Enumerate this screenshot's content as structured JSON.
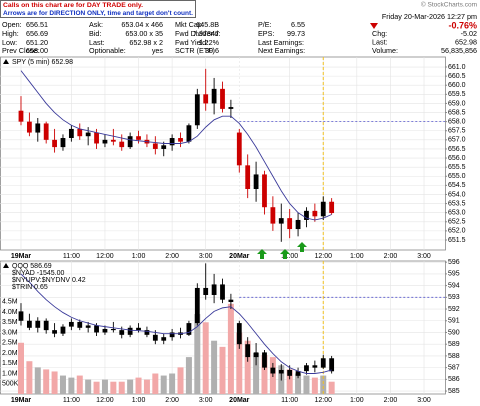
{
  "note": {
    "line1": "Calls on this chart are for DAY TRADE only.",
    "line2": "Arrows are for DIRECTION ONLY, time and target don't count."
  },
  "quote": {
    "credit": "© StockCharts.com",
    "date": "Friday 20-Mar-2026 12:27 pm",
    "change_pct": "-0.76%",
    "rows": [
      [
        {
          "label": "Open:",
          "value": "656.51"
        },
        {
          "label": "Ask:",
          "value": "653.04 x 466"
        },
        {
          "label": "Mkt Cap:",
          "value": "645.8B"
        },
        {
          "label": "P/E:",
          "value": "6.55"
        }
      ],
      [
        {
          "label": "High:",
          "value": "656.69"
        },
        {
          "label": "Bid:",
          "value": "653.00 x 35"
        },
        {
          "label": "Fwd Dividend:",
          "value": "7.97347"
        },
        {
          "label": "EPS:",
          "value": "99.73"
        }
      ],
      [
        {
          "label": "Low:",
          "value": "651.20"
        },
        {
          "label": "Last:",
          "value": "652.98 x 2"
        },
        {
          "label": "Fwd Yield:",
          "value": "1.22%"
        },
        {
          "label": "Last Earnings:"
        }
      ],
      [
        {
          "label": "Prev Close:",
          "value": "658.00"
        },
        {
          "label": "Optionable:",
          "value": "yes"
        },
        {
          "label": "SCTR (ETF)",
          "value": "30.6"
        },
        {
          "label": "Next Earnings:"
        }
      ]
    ],
    "side": [
      {
        "label": "Chg:",
        "value": "-5.02"
      },
      {
        "label": "Last:",
        "value": "652.98"
      },
      {
        "label": "Volume:",
        "value": "56,835,856"
      }
    ]
  },
  "chart_data": [
    {
      "type": "candlestick",
      "legend": [
        "SPY (5 min) 652.98"
      ],
      "up_color": "#000000",
      "down_color": "#cc0000",
      "open": [
        658.6,
        658.0,
        657.4,
        657.9,
        657.0,
        656.6,
        657.1,
        657.6,
        657.2,
        657.4,
        656.8,
        657.0,
        656.9,
        656.6,
        657.2,
        657.0,
        656.8,
        656.5,
        656.7,
        657.1,
        656.9,
        657.8,
        659.5,
        659.0,
        659.8,
        658.7,
        657.4,
        655.6,
        654.3,
        655.1,
        653.3,
        652.4,
        652.7,
        652.1,
        652.6,
        653.1,
        652.8,
        653.6
      ],
      "high": [
        659.4,
        658.5,
        658.2,
        658.0,
        657.6,
        657.3,
        657.8,
        657.9,
        657.7,
        657.6,
        657.3,
        657.6,
        657.3,
        657.4,
        657.5,
        657.3,
        657.2,
        656.9,
        657.3,
        657.4,
        657.9,
        659.8,
        660.9,
        660.4,
        660.2,
        659.2,
        657.6,
        656.2,
        655.8,
        655.3,
        653.9,
        653.5,
        653.2,
        653.0,
        653.3,
        653.5,
        653.9,
        653.8
      ],
      "low": [
        657.8,
        657.2,
        656.9,
        656.8,
        656.3,
        656.4,
        656.9,
        657.0,
        656.7,
        656.5,
        656.6,
        656.7,
        656.4,
        656.5,
        656.8,
        656.6,
        656.2,
        656.1,
        656.4,
        656.6,
        656.8,
        657.6,
        658.6,
        658.4,
        658.5,
        658.2,
        655.2,
        653.8,
        653.6,
        652.9,
        652.0,
        651.4,
        651.6,
        651.7,
        652.2,
        652.5,
        652.6,
        652.9
      ],
      "close": [
        658.0,
        657.4,
        657.9,
        657.0,
        656.6,
        657.1,
        657.6,
        657.2,
        657.4,
        656.8,
        657.0,
        656.9,
        656.6,
        657.2,
        657.0,
        656.8,
        656.5,
        656.7,
        657.1,
        656.9,
        657.8,
        659.5,
        659.0,
        659.8,
        658.7,
        658.8,
        655.6,
        654.3,
        655.1,
        653.3,
        652.4,
        652.7,
        652.1,
        652.6,
        653.1,
        652.8,
        653.6,
        652.98
      ],
      "overlay_color": "#3a3a9a",
      "overlay_values": [
        660.8,
        660.2,
        659.6,
        659.0,
        658.5,
        658.1,
        657.8,
        657.6,
        657.5,
        657.4,
        657.3,
        657.2,
        657.1,
        657.0,
        656.95,
        656.9,
        656.85,
        656.8,
        656.8,
        656.8,
        656.9,
        657.2,
        657.7,
        658.1,
        658.3,
        658.3,
        657.9,
        657.3,
        656.6,
        655.8,
        655.0,
        654.2,
        653.5,
        653.0,
        652.7,
        652.6,
        652.7,
        652.9
      ],
      "reference_line": 658.0,
      "reference_color": "#5555cc",
      "marker_color": "#f0c020",
      "xlim": [
        -2.5,
        50.5
      ],
      "xticks": [
        {
          "value": 0,
          "label": "19Mar"
        },
        {
          "value": 6,
          "label": "11:00"
        },
        {
          "value": 10,
          "label": "12:00"
        },
        {
          "value": 14,
          "label": "1:00"
        },
        {
          "value": 18,
          "label": "2:00"
        },
        {
          "value": 22,
          "label": "3:00"
        },
        {
          "value": 26,
          "label": "20Mar"
        },
        {
          "value": 32,
          "label": "11:00"
        },
        {
          "value": 36,
          "label": "12:00"
        },
        {
          "value": 40,
          "label": "1:00"
        },
        {
          "value": 44,
          "label": "2:00"
        },
        {
          "value": 48,
          "label": "3:00"
        }
      ],
      "ylim": [
        650.95,
        661.55
      ],
      "yticks": [
        651.5,
        {
          "value": 652,
          "label": "652.0"
        },
        652.5,
        {
          "value": 653,
          "label": "653.0"
        },
        653.5,
        {
          "value": 654,
          "label": "654.0"
        },
        654.5,
        {
          "value": 655,
          "label": "655.0"
        },
        655.5,
        {
          "value": 656,
          "label": "656.0"
        },
        656.5,
        {
          "value": 657,
          "label": "657.0"
        },
        657.5,
        {
          "value": 658,
          "label": "658.0"
        },
        658.5,
        {
          "value": 659,
          "label": "659.0"
        },
        659.5,
        {
          "value": 660,
          "label": "660.0"
        },
        660.5,
        {
          "value": 661,
          "label": "661.0"
        }
      ],
      "grid": true
    },
    {
      "type": "candlestick",
      "legend": [
        "QQQ 586.69",
        "$NYAD -1545.00",
        "$NYUPV:$NYDNV 0.42",
        "$TRIN 0.65"
      ],
      "up_color": "#000000",
      "down_color": "#000000",
      "open": [
        591.8,
        591.0,
        590.4,
        591.0,
        590.2,
        589.9,
        590.5,
        590.9,
        590.4,
        590.6,
        590.0,
        590.3,
        590.2,
        589.8,
        590.4,
        590.2,
        589.8,
        589.3,
        589.6,
        590.0,
        589.8,
        590.8,
        593.8,
        593.2,
        594.1,
        592.8,
        590.8,
        589.0,
        587.9,
        588.3,
        587.0,
        586.5,
        586.8,
        586.3,
        586.7,
        587.2,
        587.0,
        587.8
      ],
      "high": [
        592.5,
        591.6,
        591.3,
        591.2,
        590.8,
        590.7,
        591.2,
        591.1,
        590.9,
        590.8,
        590.6,
        590.9,
        590.5,
        590.6,
        590.8,
        590.5,
        590.2,
        589.9,
        590.3,
        590.4,
        591.0,
        594.2,
        595.9,
        595.0,
        594.6,
        593.3,
        591.0,
        589.6,
        589.1,
        588.5,
        587.4,
        587.3,
        587.2,
        587.0,
        587.4,
        587.6,
        588.1,
        588.0
      ],
      "low": [
        590.6,
        590.2,
        590.0,
        589.9,
        589.6,
        589.7,
        590.2,
        590.2,
        590.0,
        589.7,
        589.8,
        590.0,
        589.5,
        589.6,
        590.0,
        589.6,
        589.0,
        589.0,
        589.3,
        589.5,
        589.7,
        590.6,
        592.8,
        592.5,
        592.5,
        592.0,
        588.6,
        587.5,
        587.2,
        586.8,
        586.2,
        585.9,
        586.0,
        586.1,
        586.4,
        586.6,
        586.9,
        586.5
      ],
      "close": [
        591.0,
        590.4,
        591.0,
        590.2,
        589.9,
        590.5,
        590.9,
        590.4,
        590.6,
        590.0,
        590.3,
        590.2,
        589.8,
        590.4,
        590.2,
        589.8,
        589.3,
        589.6,
        590.0,
        589.8,
        590.8,
        593.8,
        593.2,
        594.1,
        592.8,
        592.6,
        589.0,
        587.9,
        588.3,
        587.0,
        586.5,
        586.8,
        586.3,
        586.7,
        587.2,
        587.0,
        587.8,
        586.69
      ],
      "overlay_color": "#3a3a9a",
      "overlay_values": [
        595.0,
        594.3,
        593.5,
        592.8,
        592.2,
        591.7,
        591.3,
        591.0,
        590.8,
        590.6,
        590.5,
        590.4,
        590.3,
        590.2,
        590.15,
        590.1,
        590.0,
        589.9,
        589.9,
        589.9,
        590.0,
        590.5,
        591.2,
        591.8,
        592.1,
        592.2,
        591.6,
        590.8,
        589.9,
        589.0,
        588.2,
        587.5,
        587.0,
        586.7,
        586.5,
        586.5,
        586.6,
        586.8
      ],
      "volume": {
        "axis": "y2",
        "up_color": "#b0b0b0",
        "down_color": "#f2a8a8",
        "values": [
          2500000,
          1600000,
          1300000,
          1200000,
          1100000,
          900000,
          800000,
          900000,
          700000,
          600000,
          700000,
          600000,
          600000,
          700000,
          800000,
          700000,
          1000000,
          900000,
          1000000,
          1300000,
          1800000,
          3900000,
          3500000,
          2600000,
          2300000,
          4400000,
          3000000,
          2600000,
          2000000,
          1900000,
          1800000,
          1400000,
          1200000,
          1000000,
          900000,
          800000,
          900000,
          600000
        ]
      },
      "reference_line": 593.0,
      "reference_color": "#5555cc",
      "marker_color": "#f0c020",
      "xlim": [
        -2.5,
        50.5
      ],
      "xticks": [
        {
          "value": 0,
          "label": "19Mar"
        },
        {
          "value": 6,
          "label": "11:00"
        },
        {
          "value": 10,
          "label": "12:00"
        },
        {
          "value": 14,
          "label": "1:00"
        },
        {
          "value": 18,
          "label": "2:00"
        },
        {
          "value": 22,
          "label": "3:00"
        },
        {
          "value": 26,
          "label": "20Mar"
        },
        {
          "value": 32,
          "label": "11:00"
        },
        {
          "value": 36,
          "label": "12:00"
        },
        {
          "value": 40,
          "label": "1:00"
        },
        {
          "value": 44,
          "label": "2:00"
        },
        {
          "value": 48,
          "label": "3:00"
        }
      ],
      "ylim": [
        584.75,
        596.1
      ],
      "yticks": [
        585,
        586,
        587,
        588,
        589,
        590,
        591,
        592,
        593,
        594,
        595,
        596
      ],
      "y2lim": [
        0,
        6490000
      ],
      "y2ticks": [
        {
          "value": 500000,
          "label": "500K"
        },
        {
          "value": 1000000,
          "label": "1.0M"
        },
        {
          "value": 1500000,
          "label": "1.5M"
        },
        {
          "value": 2000000,
          "label": "2.0M"
        },
        {
          "value": 2500000,
          "label": "2.5M"
        },
        {
          "value": 3000000,
          "label": "3.0M"
        },
        {
          "value": 3500000,
          "label": "3.5M"
        },
        {
          "value": 4000000,
          "label": "4.0M"
        },
        {
          "value": 4500000,
          "label": "4.5M"
        }
      ],
      "grid": true
    }
  ]
}
